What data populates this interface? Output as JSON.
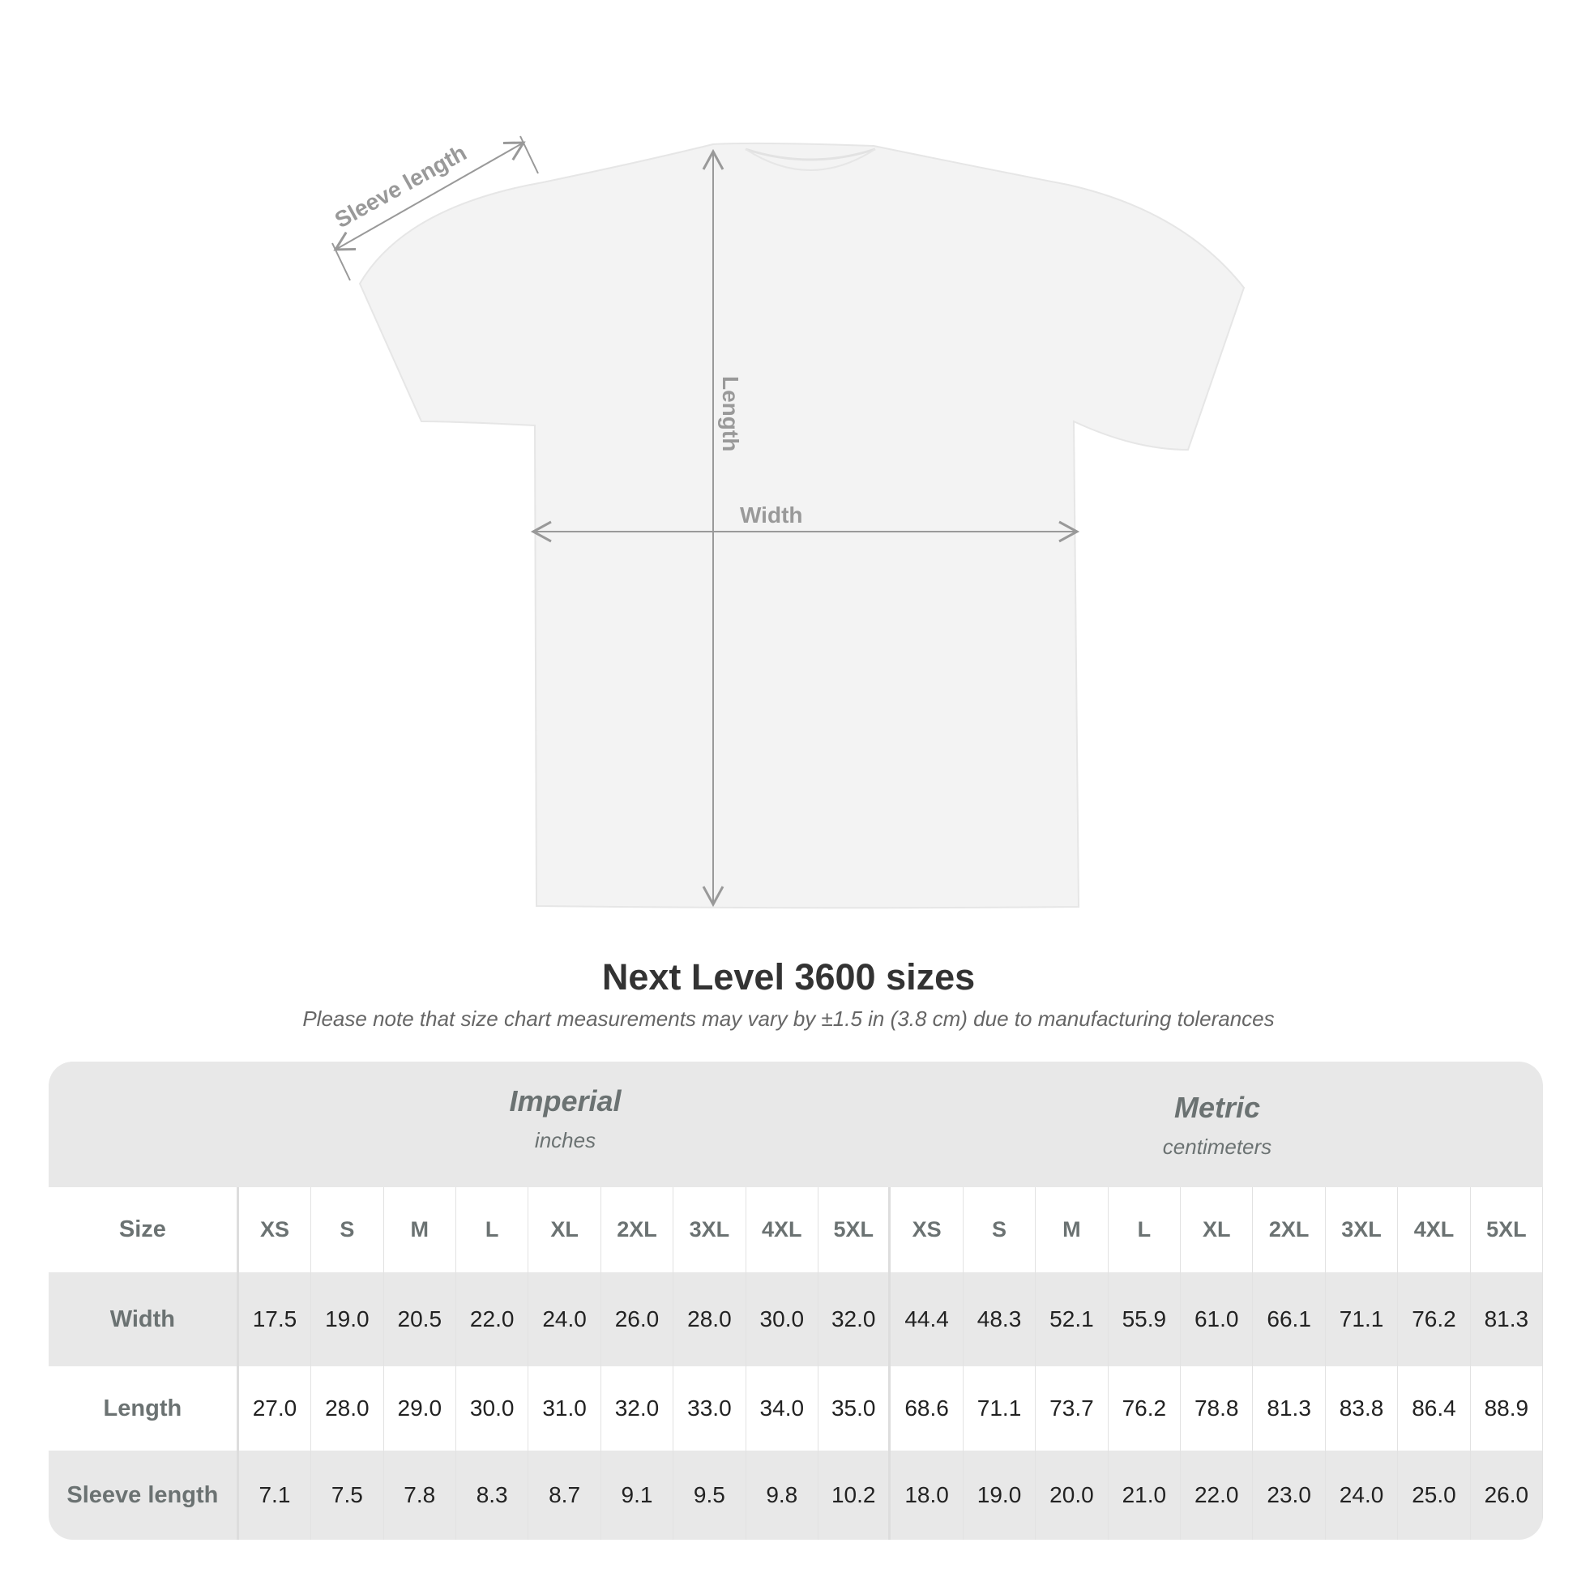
{
  "diagram": {
    "labels": {
      "sleeve": "Sleeve length",
      "length": "Length",
      "width": "Width"
    }
  },
  "title": "Next Level 3600 sizes",
  "subtitle": "Please note that size chart measurements may vary by ±1.5 in (3.8 cm) due to manufacturing tolerances",
  "table": {
    "imperial": {
      "label": "Imperial",
      "unit": "inches"
    },
    "metric": {
      "label": "Metric",
      "unit": "centimeters"
    },
    "size_label": "Size",
    "sizes": [
      "XS",
      "S",
      "M",
      "L",
      "XL",
      "2XL",
      "3XL",
      "4XL",
      "5XL"
    ],
    "rows": [
      {
        "label": "Width",
        "imperial": [
          "17.5",
          "19.0",
          "20.5",
          "22.0",
          "24.0",
          "26.0",
          "28.0",
          "30.0",
          "32.0"
        ],
        "metric": [
          "44.4",
          "48.3",
          "52.1",
          "55.9",
          "61.0",
          "66.1",
          "71.1",
          "76.2",
          "81.3"
        ]
      },
      {
        "label": "Length",
        "imperial": [
          "27.0",
          "28.0",
          "29.0",
          "30.0",
          "31.0",
          "32.0",
          "33.0",
          "34.0",
          "35.0"
        ],
        "metric": [
          "68.6",
          "71.1",
          "73.7",
          "76.2",
          "78.8",
          "81.3",
          "83.8",
          "86.4",
          "88.9"
        ]
      },
      {
        "label": "Sleeve length",
        "imperial": [
          "7.1",
          "7.5",
          "7.8",
          "8.3",
          "8.7",
          "9.1",
          "9.5",
          "9.8",
          "10.2"
        ],
        "metric": [
          "18.0",
          "19.0",
          "20.0",
          "21.0",
          "22.0",
          "23.0",
          "24.0",
          "25.0",
          "26.0"
        ]
      }
    ]
  },
  "colors": {
    "header_text": "#6b7272",
    "band": "#e8e8e8",
    "measure_line": "#9a9a9a"
  }
}
